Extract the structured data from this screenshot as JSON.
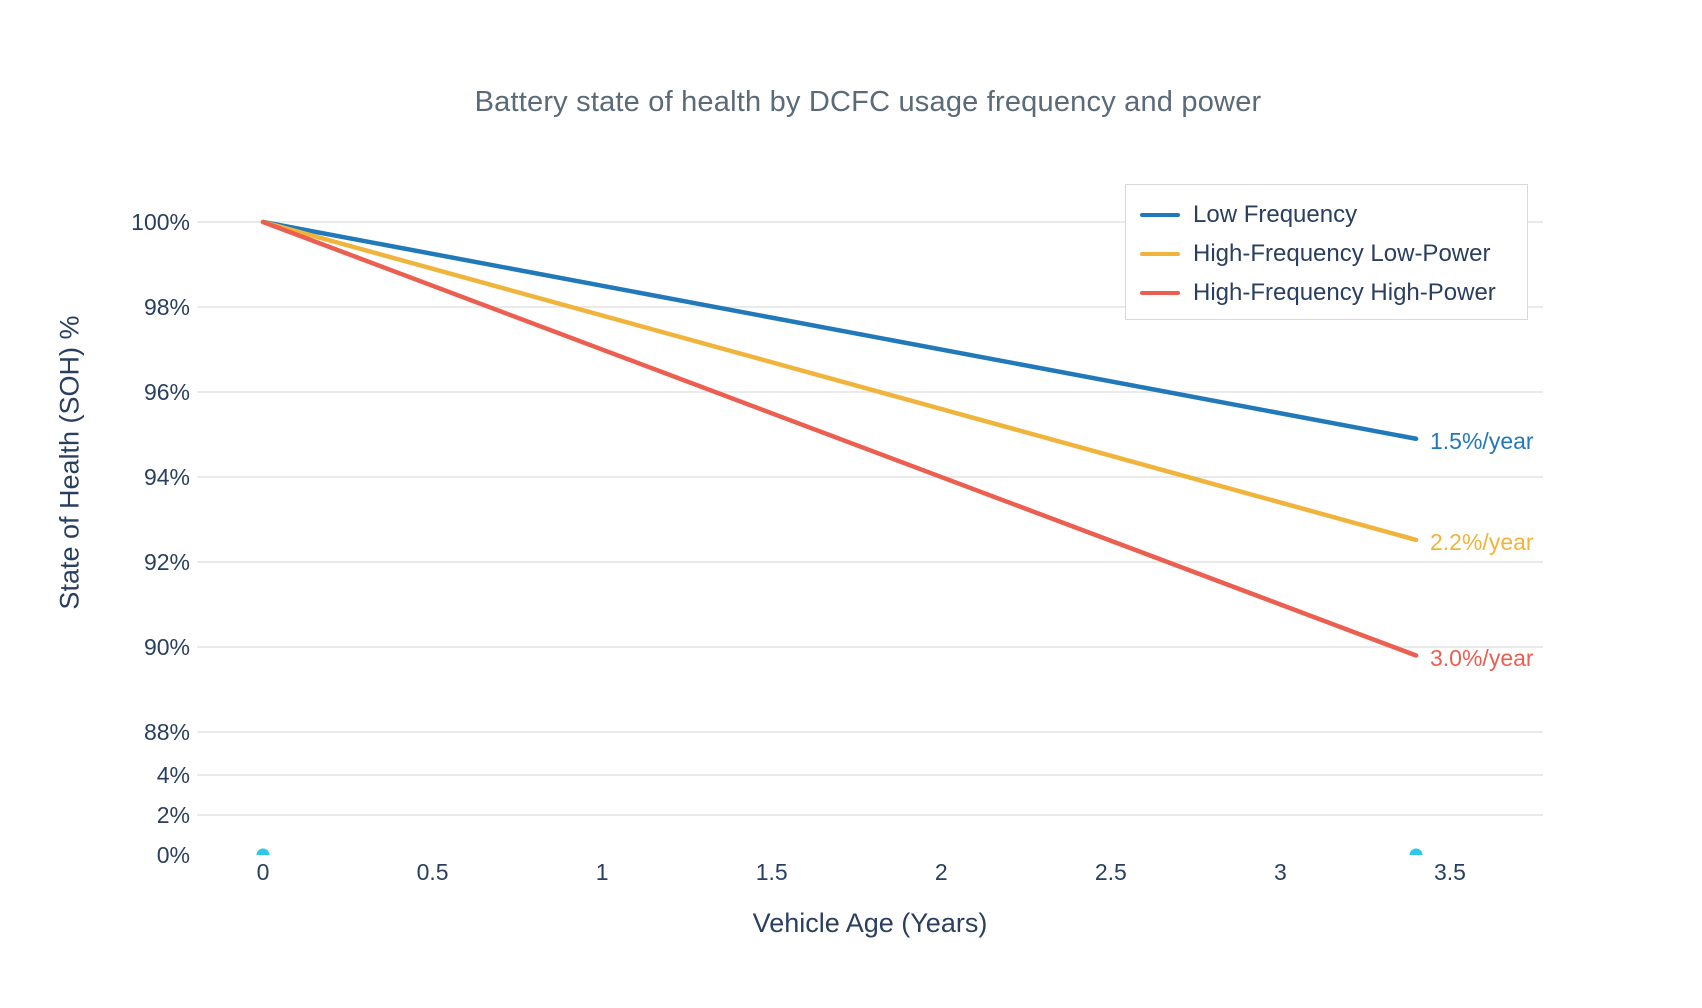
{
  "chart_data": {
    "type": "line",
    "title": "Battery state of health by DCFC usage frequency and power",
    "xlabel": "Vehicle Age (Years)",
    "ylabel": "State of Health (SOH) %",
    "x": [
      0,
      3.4
    ],
    "series": [
      {
        "name": "Low Frequency",
        "color": "#2279ba",
        "values": [
          100,
          94.9
        ],
        "annotation": "1.5%/year"
      },
      {
        "name": "High-Frequency Low-Power",
        "color": "#f0b43c",
        "values": [
          100,
          92.52
        ],
        "annotation": "2.2%/year"
      },
      {
        "name": "High-Frequency High-Power",
        "color": "#ec5f50",
        "values": [
          100,
          89.8
        ],
        "annotation": "3.0%/year"
      }
    ],
    "baseline_markers": {
      "color": "#2cc9e8",
      "points": [
        {
          "x": 0,
          "y": 0
        },
        {
          "x": 3.4,
          "y": 0
        }
      ]
    },
    "x_tick_values": [
      0,
      0.5,
      1,
      1.5,
      2,
      2.5,
      3,
      3.5
    ],
    "x_tick_labels": [
      "0",
      "0.5",
      "1",
      "1.5",
      "2",
      "2.5",
      "3",
      "3.5"
    ],
    "y_tick_values": [
      100,
      98,
      96,
      94,
      92,
      90,
      88,
      4,
      2,
      0
    ],
    "y_tick_labels": [
      "100%",
      "98%",
      "96%",
      "94%",
      "92%",
      "90%",
      "88%",
      "4%",
      "2%",
      "0%"
    ],
    "y_axis_break": {
      "between": [
        4,
        88
      ]
    },
    "ylim_top_segment": [
      88,
      100
    ],
    "ylim_bottom_segment": [
      0,
      4
    ],
    "grid": true,
    "legend_position": "top-right",
    "colors": {
      "gridline": "#e3e3e3",
      "tick_text": "#2a3f5f",
      "title_text": "#5b6a78",
      "legend_border": "#d9d9d9",
      "background": "#ffffff"
    }
  }
}
